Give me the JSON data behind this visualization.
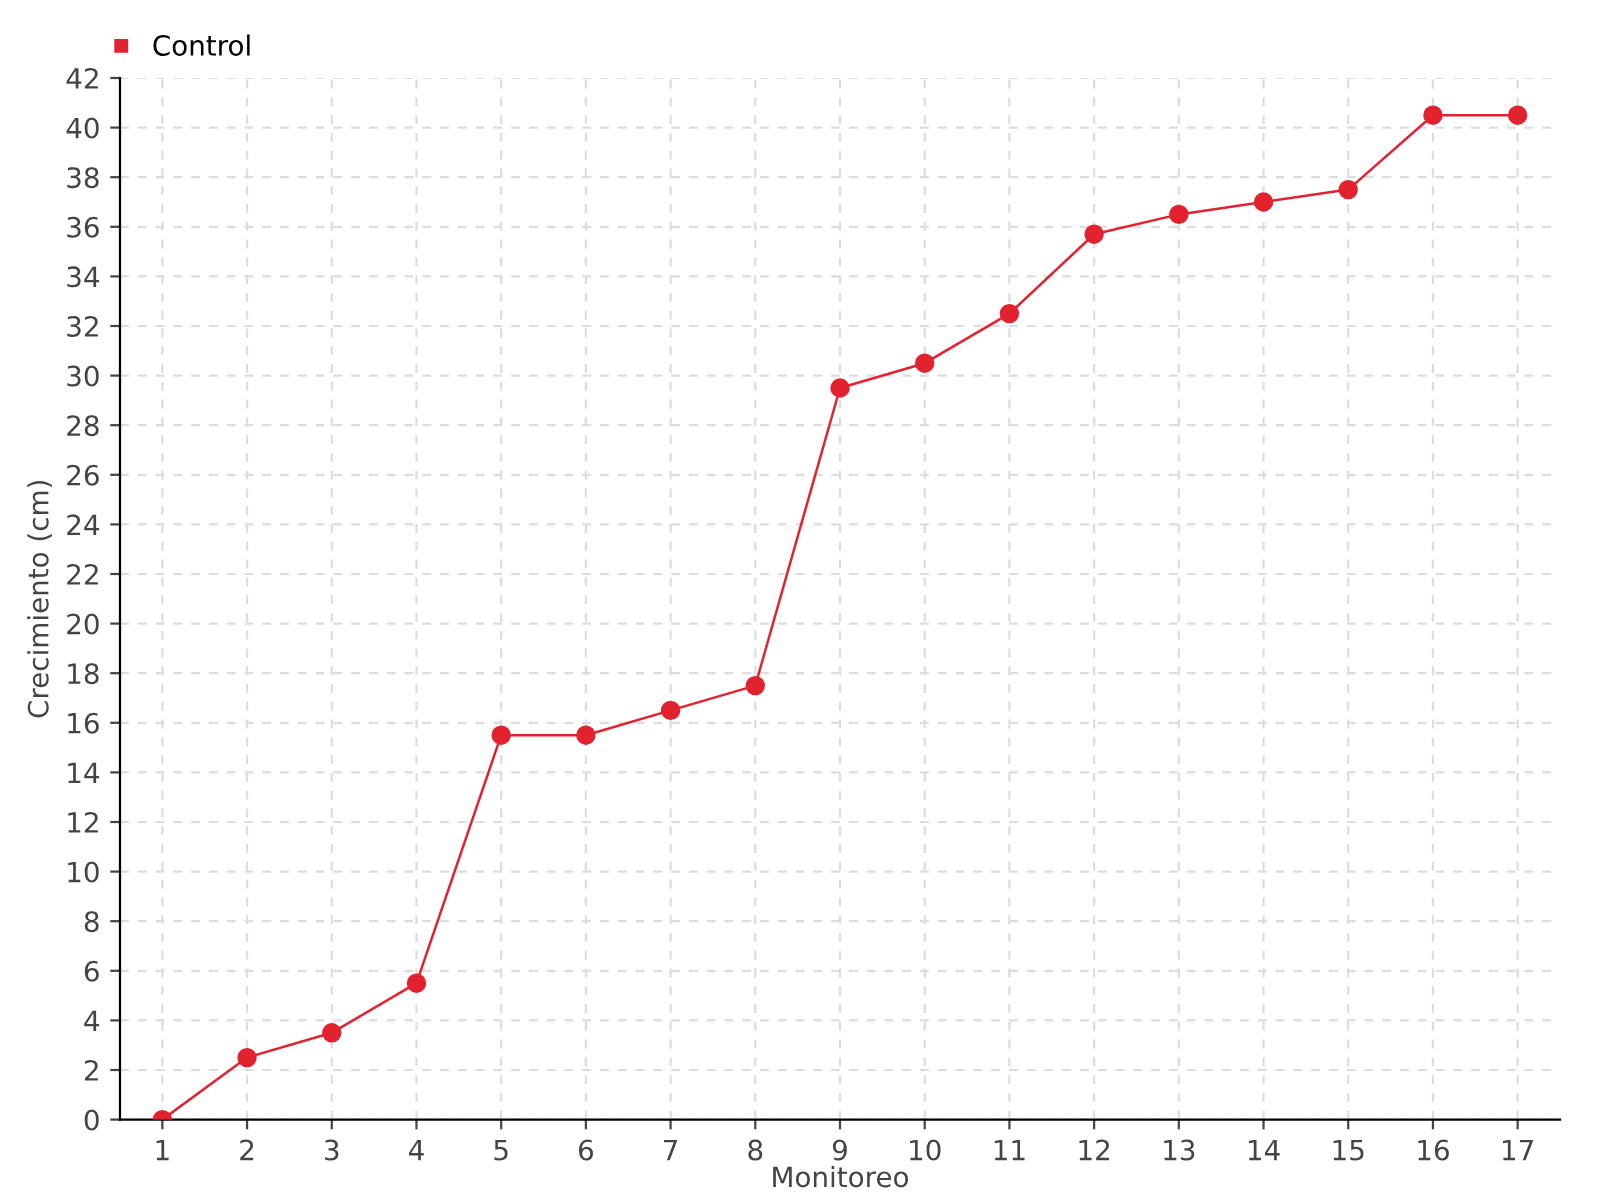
{
  "chart_data": {
    "type": "line",
    "xlabel": "Monitoreo",
    "ylabel": "Crecimiento (cm)",
    "categories": [
      "1",
      "2",
      "3",
      "4",
      "5",
      "6",
      "7",
      "8",
      "9",
      "10",
      "11",
      "12",
      "13",
      "14",
      "15",
      "16",
      "17"
    ],
    "series": [
      {
        "name": "Control",
        "color": "#e3222f",
        "values": [
          0,
          2.5,
          3.5,
          5.5,
          15.5,
          15.5,
          16.5,
          17.5,
          29.5,
          30.5,
          32.5,
          35.7,
          36.5,
          37,
          37.5,
          40.5,
          40.5
        ]
      }
    ],
    "ylim": [
      0,
      42
    ],
    "yticks": [
      0,
      2,
      4,
      6,
      8,
      10,
      12,
      14,
      16,
      18,
      20,
      22,
      24,
      26,
      28,
      30,
      32,
      34,
      36,
      38,
      40,
      42
    ],
    "grid": true,
    "legend": "top left",
    "marker": "circle",
    "line_style": "solid"
  }
}
